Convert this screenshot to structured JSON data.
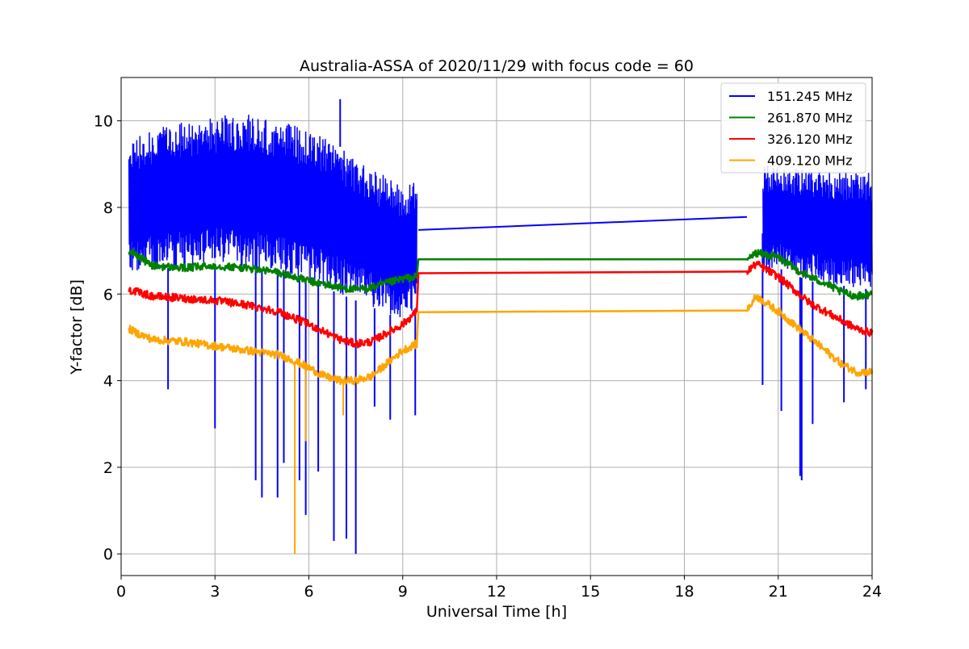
{
  "chart_data": {
    "type": "line",
    "title": "Australia-ASSA of 2020/11/29 with focus code = 60",
    "xlabel": "Universal Time [h]",
    "ylabel": "Y-factor [dB]",
    "xlim": [
      0,
      24
    ],
    "ylim": [
      -0.5,
      11
    ],
    "xticks": [
      0,
      3,
      6,
      9,
      12,
      15,
      18,
      21,
      24
    ],
    "yticks": [
      0,
      2,
      4,
      6,
      8,
      10
    ],
    "grid": true,
    "legend_position": "top-right",
    "series": [
      {
        "name": "151.245 MHz",
        "color": "#0000ff",
        "x": [
          0.25,
          1.0,
          2.0,
          3.0,
          4.0,
          5.0,
          6.0,
          7.0,
          8.0,
          9.0,
          9.45,
          9.5,
          20.0,
          20.5,
          21.0,
          22.0,
          23.0,
          24.0
        ],
        "y": [
          8.0,
          8.3,
          8.5,
          8.6,
          8.6,
          8.4,
          8.2,
          7.9,
          7.4,
          7.1,
          7.4,
          7.48,
          7.78,
          7.4,
          7.5,
          7.5,
          7.4,
          7.3
        ],
        "band_low": [
          6.4,
          6.6,
          6.6,
          6.7,
          6.6,
          6.5,
          6.3,
          6.0,
          5.7,
          5.4,
          5.7,
          null,
          null,
          6.4,
          6.6,
          6.3,
          6.2,
          6.1
        ],
        "band_high": [
          9.6,
          9.8,
          10.0,
          10.1,
          10.2,
          10.0,
          9.8,
          9.4,
          8.9,
          8.5,
          8.6,
          null,
          null,
          9.0,
          8.9,
          8.9,
          8.8,
          8.8
        ],
        "spikes_down": [
          [
            1.5,
            3.8
          ],
          [
            3.0,
            2.9
          ],
          [
            4.3,
            1.7
          ],
          [
            4.5,
            1.3
          ],
          [
            5.0,
            1.3
          ],
          [
            5.2,
            2.1
          ],
          [
            5.7,
            1.7
          ],
          [
            5.9,
            0.9
          ],
          [
            6.3,
            1.9
          ],
          [
            6.8,
            0.3
          ],
          [
            7.2,
            0.35
          ],
          [
            7.5,
            0.0
          ],
          [
            8.1,
            3.4
          ],
          [
            8.6,
            3.1
          ],
          [
            9.4,
            3.2
          ],
          [
            20.5,
            3.9
          ],
          [
            21.1,
            3.3
          ],
          [
            21.7,
            1.8
          ],
          [
            21.75,
            1.7
          ],
          [
            22.1,
            3.0
          ],
          [
            23.1,
            3.5
          ],
          [
            23.8,
            3.8
          ]
        ],
        "spikes_up": [
          [
            7.0,
            10.5
          ]
        ]
      },
      {
        "name": "261.870 MHz",
        "color": "#008000",
        "x": [
          0.25,
          0.5,
          1.0,
          2.0,
          3.0,
          4.0,
          5.0,
          6.0,
          7.0,
          7.5,
          8.0,
          9.0,
          9.45,
          9.5,
          20.0,
          20.3,
          21.0,
          21.5,
          22.0,
          22.5,
          23.0,
          23.5,
          24.0
        ],
        "y": [
          7.0,
          6.9,
          6.65,
          6.6,
          6.65,
          6.6,
          6.5,
          6.3,
          6.15,
          6.1,
          6.15,
          6.35,
          6.4,
          6.8,
          6.8,
          6.95,
          6.85,
          6.6,
          6.4,
          6.25,
          6.05,
          5.95,
          6.0
        ]
      },
      {
        "name": "326.120 MHz",
        "color": "#ff0000",
        "x": [
          0.25,
          0.5,
          1.0,
          2.0,
          3.0,
          4.0,
          5.0,
          6.0,
          7.0,
          7.5,
          8.0,
          9.0,
          9.45,
          9.5,
          20.0,
          20.3,
          21.0,
          21.5,
          22.0,
          22.5,
          23.0,
          23.5,
          24.0
        ],
        "y": [
          6.1,
          6.05,
          5.95,
          5.9,
          5.85,
          5.75,
          5.6,
          5.3,
          4.95,
          4.85,
          4.9,
          5.3,
          5.6,
          6.48,
          6.52,
          6.7,
          6.4,
          6.1,
          5.8,
          5.6,
          5.4,
          5.2,
          5.1
        ]
      },
      {
        "name": "409.120 MHz",
        "color": "#ffa500",
        "x": [
          0.25,
          0.5,
          1.0,
          2.0,
          3.0,
          4.0,
          5.0,
          5.4,
          6.0,
          6.5,
          7.0,
          7.5,
          8.0,
          8.5,
          9.0,
          9.45,
          9.5,
          20.0,
          20.3,
          21.0,
          21.5,
          22.0,
          22.5,
          23.0,
          23.5,
          24.0
        ],
        "y": [
          5.2,
          5.1,
          4.95,
          4.9,
          4.8,
          4.7,
          4.6,
          4.5,
          4.3,
          4.1,
          4.0,
          4.0,
          4.1,
          4.4,
          4.7,
          4.85,
          5.58,
          5.62,
          5.95,
          5.6,
          5.3,
          5.0,
          4.7,
          4.4,
          4.2,
          4.2
        ],
        "spikes_down": [
          [
            5.55,
            0.0
          ],
          [
            5.9,
            2.6
          ],
          [
            7.1,
            3.2
          ]
        ]
      }
    ]
  }
}
